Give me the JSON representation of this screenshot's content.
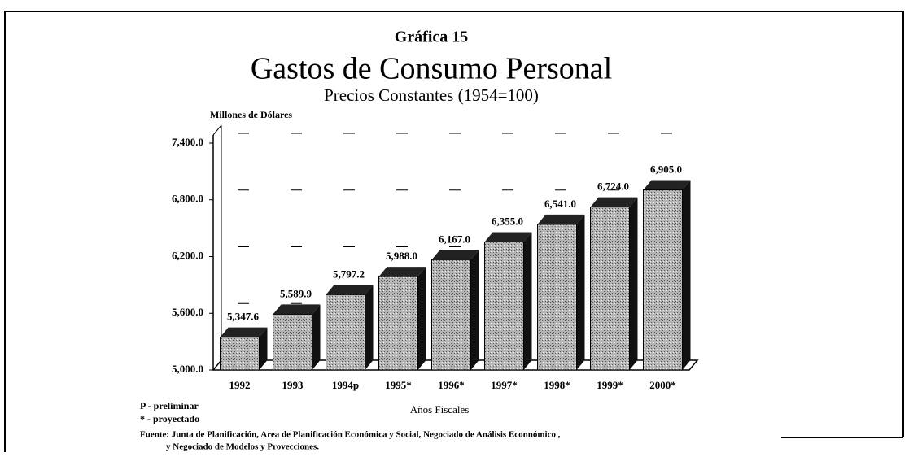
{
  "chart_data": {
    "type": "bar",
    "title": "Gráfica 15",
    "subtitle": "Gastos de Consumo Personal",
    "subtitle2": "Precios Constantes (1954=100)",
    "y_label": "Millones de Dólares",
    "x_label": "Años Fiscales",
    "notes": [
      "P - preliminar",
      "* - proyectado"
    ],
    "source": [
      "Fuente: Junta de Planificación, Area de Planificación Económica y Social, Negociado de Análisis Econnómico ,",
      "y Negociado de Modelos y Provecciones."
    ],
    "categories": [
      "1992",
      "1993",
      "1994p",
      "1995*",
      "1996*",
      "1997*",
      "1998*",
      "1999*",
      "2000*"
    ],
    "values": [
      5347.6,
      5589.9,
      5797.2,
      5988.0,
      6167.0,
      6355.0,
      6541.0,
      6724.0,
      6905.0
    ],
    "value_labels": [
      "5,347.6",
      "5,589.9",
      "5,797.2",
      "5,988.0",
      "6,167.0",
      "6,355.0",
      "6,541.0",
      "6,724.0",
      "6,905.0"
    ],
    "color": "#a8a8a8",
    "ylim": [
      5000,
      7400
    ],
    "yticks": [
      {
        "value": 5000,
        "label": "5,000.0"
      },
      {
        "value": 5600,
        "label": "5,600.0"
      },
      {
        "value": 6200,
        "label": "6,200.0"
      },
      {
        "value": 6800,
        "label": "6,800.0"
      },
      {
        "value": 7400,
        "label": "7,400.0"
      }
    ],
    "grid": true
  }
}
